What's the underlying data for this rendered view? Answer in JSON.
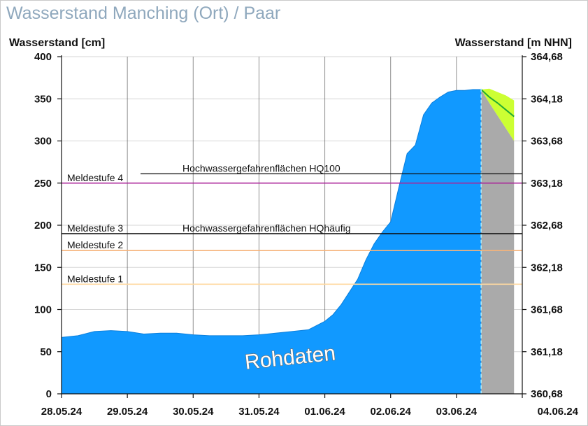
{
  "page": {
    "title": "Wasserstand Manching (Ort) / Paar"
  },
  "colors": {
    "measured_fill": "#1199ff",
    "forecast_fill": "#aaaaaa",
    "forecast_band": "#ccff33",
    "forecast_line": "#22aa33",
    "now_line": "#aaeeff",
    "meldestufe_1": "#ffd9a0",
    "meldestufe_2": "#f5b37a",
    "meldestufe_3": "#111111",
    "meldestufe_4": "#aa2299",
    "hq_lines": "#111111"
  },
  "chart_data": {
    "type": "area",
    "ylabel": "Wasserstand [cm]",
    "ylabel_right": "Wasserstand [m NHN]",
    "ylim": [
      0,
      400
    ],
    "yticks": [
      0,
      50,
      100,
      150,
      200,
      250,
      300,
      350,
      400
    ],
    "yticks_right": [
      "360,68",
      "361,18",
      "361,68",
      "362,18",
      "362,68",
      "363,18",
      "363,68",
      "364,18",
      "364,68"
    ],
    "xlim": [
      "2024-05-28T00:00",
      "2024-06-04T00:00"
    ],
    "xtick_labels": [
      "28.05.24",
      "29.05.24",
      "30.05.24",
      "31.05.24",
      "01.06.24",
      "02.06.24",
      "03.06.24",
      "04.06.24"
    ],
    "annotation": "Rohdaten",
    "grid": "horizontal",
    "reference_lines": [
      {
        "label": "Meldestufe 1",
        "value": 130,
        "color_key": "meldestufe_1"
      },
      {
        "label": "Meldestufe 2",
        "value": 170,
        "color_key": "meldestufe_2"
      },
      {
        "label": "Meldestufe 3",
        "value": 190,
        "color_key": "meldestufe_3"
      },
      {
        "label": "Meldestufe 4",
        "value": 250,
        "color_key": "meldestufe_4"
      }
    ],
    "hq_lines": [
      {
        "label": "Hochwassergefahrenflächen HQhäufig",
        "value": 190
      },
      {
        "label": "Hochwassergefahrenflächen HQ100",
        "value": 261
      }
    ],
    "series": [
      {
        "kind": "measured",
        "x": [
          "2024-05-27T12:00",
          "2024-05-28T00:00",
          "2024-05-28T06:00",
          "2024-05-28T12:00",
          "2024-05-28T18:00",
          "2024-05-29T00:00",
          "2024-05-29T06:00",
          "2024-05-29T12:00",
          "2024-05-29T18:00",
          "2024-05-30T00:00",
          "2024-05-30T06:00",
          "2024-05-30T12:00",
          "2024-05-30T18:00",
          "2024-05-31T00:00",
          "2024-05-31T06:00",
          "2024-05-31T12:00",
          "2024-05-31T18:00",
          "2024-06-01T00:00",
          "2024-06-01T03:00",
          "2024-06-01T06:00",
          "2024-06-01T09:00",
          "2024-06-01T12:00",
          "2024-06-01T15:00",
          "2024-06-01T18:00",
          "2024-06-01T21:00",
          "2024-06-02T00:00",
          "2024-06-02T03:00",
          "2024-06-02T06:00",
          "2024-06-02T09:00",
          "2024-06-02T12:00",
          "2024-06-02T15:00",
          "2024-06-02T18:00",
          "2024-06-02T21:00",
          "2024-06-03T00:00",
          "2024-06-03T03:00",
          "2024-06-03T06:00",
          "2024-06-03T09:00"
        ],
        "y": [
          67,
          67,
          69,
          74,
          75,
          74,
          71,
          72,
          72,
          70,
          69,
          69,
          69,
          70,
          72,
          74,
          76,
          86,
          94,
          106,
          121,
          136,
          159,
          178,
          192,
          204,
          245,
          285,
          295,
          331,
          345,
          352,
          358,
          360,
          360,
          361,
          361
        ]
      },
      {
        "kind": "forecast",
        "x": [
          "2024-06-03T09:00",
          "2024-06-03T12:00",
          "2024-06-03T15:00",
          "2024-06-03T18:00",
          "2024-06-03T21:00"
        ],
        "y": [
          361,
          352,
          345,
          337,
          329
        ],
        "lower": [
          361,
          345,
          330,
          315,
          300
        ],
        "upper": [
          361,
          362,
          358,
          354,
          348
        ]
      }
    ],
    "now": "2024-06-03T09:00"
  }
}
